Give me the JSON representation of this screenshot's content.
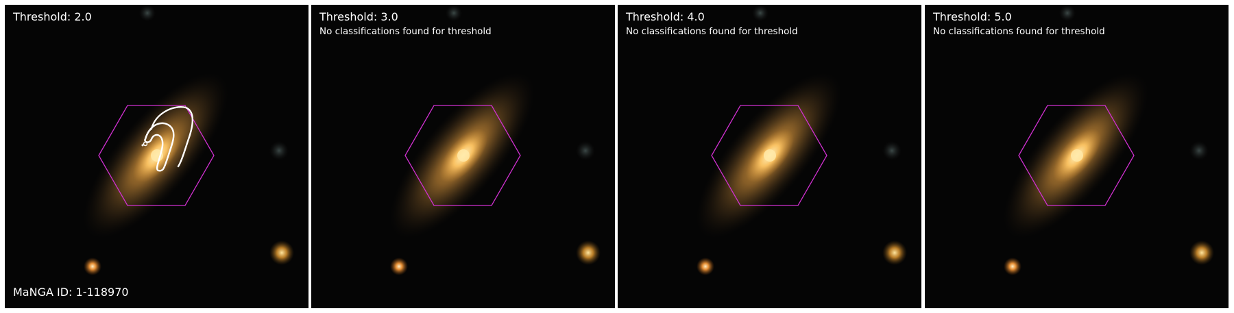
{
  "figure": {
    "panels": [
      {
        "title": "Threshold: 2.0",
        "note": "",
        "has_contour": true
      },
      {
        "title": "Threshold: 3.0",
        "note": "No classifications found for threshold",
        "has_contour": false
      },
      {
        "title": "Threshold: 4.0",
        "note": "No classifications found for threshold",
        "has_contour": false
      },
      {
        "title": "Threshold: 5.0",
        "note": "No classifications found for threshold",
        "has_contour": false
      }
    ],
    "manga_id": "MaNGA ID: 1-118970",
    "colors": {
      "hexagon": "#d030d0",
      "contour": "#ffffff",
      "galaxy_core": "#ffd27a",
      "galaxy_halo": "#a8742e",
      "star": "#ffb347",
      "background": "#050505"
    }
  }
}
